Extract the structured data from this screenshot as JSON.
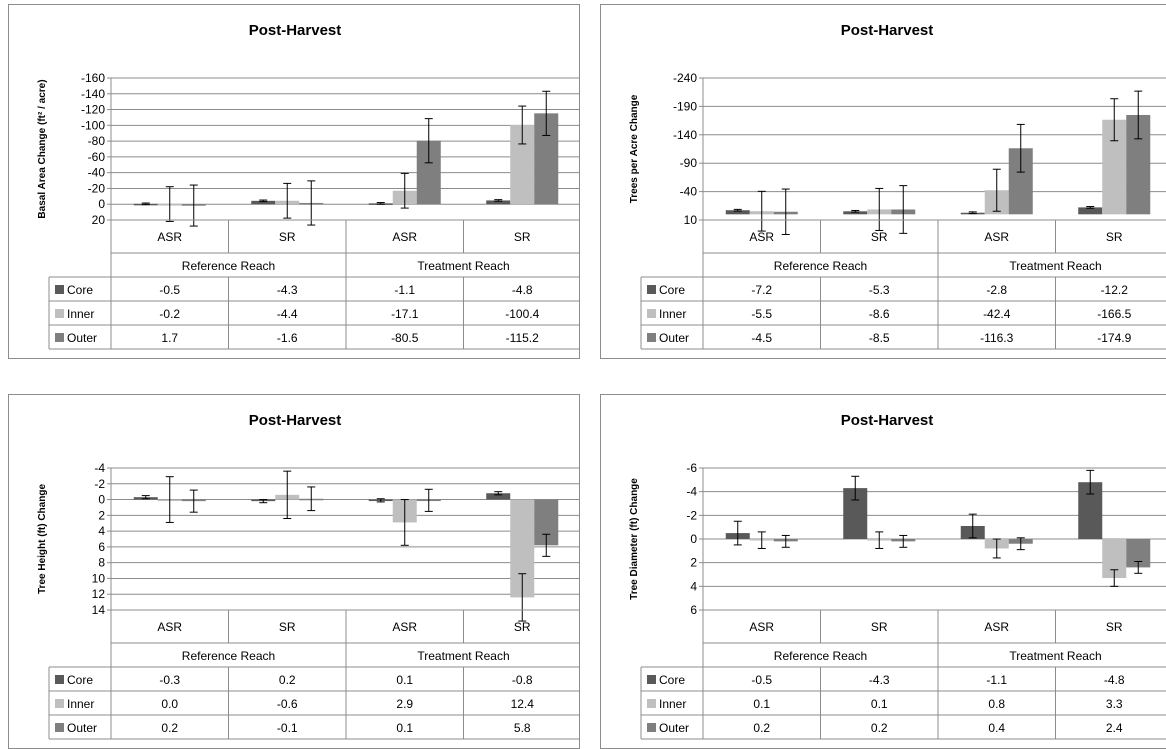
{
  "chart_data": [
    {
      "type": "bar",
      "title": "Post-Harvest",
      "ylabel": "Basal Area Change (ft² / acre)",
      "y_reversed": true,
      "ylim": [
        -160,
        20
      ],
      "ytick_values": [
        -160,
        -140,
        -120,
        -100,
        -80,
        -60,
        -40,
        -20,
        0,
        20
      ],
      "ytick_labels": [
        "-160",
        "-140",
        "-120",
        "-100",
        "-80",
        "-60",
        "-40",
        "-20",
        "0",
        "20"
      ],
      "categories": [
        "ASR",
        "SR",
        "ASR",
        "SR"
      ],
      "groups": [
        "Reference Reach",
        "Treatment Reach"
      ],
      "series": [
        {
          "name": "Core",
          "color": "#595959",
          "values": [
            -0.5,
            -4.3,
            -1.1,
            -4.8
          ],
          "labels": [
            "-0.5",
            "-4.3",
            "-1.1",
            "-4.8"
          ],
          "err": [
            1,
            1,
            1,
            1
          ]
        },
        {
          "name": "Inner",
          "color": "#bfbfbf",
          "values": [
            -0.2,
            -4.4,
            -17.1,
            -100.4
          ],
          "labels": [
            "-0.2",
            "-4.4",
            "-17.1",
            "-100.4"
          ],
          "err": [
            22,
            22,
            22,
            24
          ]
        },
        {
          "name": "Outer",
          "color": "#7f7f7f",
          "values": [
            1.7,
            -1.6,
            -80.5,
            -115.2
          ],
          "labels": [
            "1.7",
            "-1.6",
            "-80.5",
            "-115.2"
          ],
          "err": [
            26,
            28,
            28,
            28
          ]
        }
      ]
    },
    {
      "type": "bar",
      "title": "Post-Harvest",
      "ylabel": "Trees per Acre Change",
      "y_reversed": true,
      "ylim": [
        -240,
        10
      ],
      "ytick_values": [
        -240,
        -190,
        -140,
        -90,
        -40,
        10
      ],
      "ytick_labels": [
        "-240",
        "-190",
        "-140",
        "-90",
        "-40",
        "10"
      ],
      "categories": [
        "ASR",
        "SR",
        "ASR",
        "SR"
      ],
      "groups": [
        "Reference Reach",
        "Treatment Reach"
      ],
      "series": [
        {
          "name": "Core",
          "color": "#595959",
          "values": [
            -7.2,
            -5.3,
            -2.8,
            -12.2
          ],
          "labels": [
            "-7.2",
            "-5.3",
            "-2.8",
            "-12.2"
          ],
          "err": [
            1.5,
            1.5,
            1.5,
            1.5
          ]
        },
        {
          "name": "Inner",
          "color": "#bfbfbf",
          "values": [
            -5.5,
            -8.6,
            -42.4,
            -166.5
          ],
          "labels": [
            "-5.5",
            "-8.6",
            "-42.4",
            "-166.5"
          ],
          "err": [
            35,
            37,
            37,
            37
          ]
        },
        {
          "name": "Outer",
          "color": "#7f7f7f",
          "values": [
            -4.5,
            -8.5,
            -116.3,
            -174.9
          ],
          "labels": [
            "-4.5",
            "-8.5",
            "-116.3",
            "-174.9"
          ],
          "err": [
            40,
            42,
            42,
            42
          ]
        }
      ]
    },
    {
      "type": "bar",
      "title": "Post-Harvest",
      "ylabel": "Tree Height (ft) Change",
      "y_reversed": true,
      "ylim": [
        -4,
        14
      ],
      "ytick_values": [
        -4,
        -2,
        0,
        2,
        4,
        6,
        8,
        10,
        12,
        14
      ],
      "ytick_labels": [
        "-4",
        "-2",
        "0",
        "2",
        "4",
        "6",
        "8",
        "10",
        "12",
        "14"
      ],
      "categories": [
        "ASR",
        "SR",
        "ASR",
        "SR"
      ],
      "groups": [
        "Reference Reach",
        "Treatment Reach"
      ],
      "series": [
        {
          "name": "Core",
          "color": "#595959",
          "values": [
            -0.3,
            0.2,
            0.1,
            -0.8
          ],
          "labels": [
            "-0.3",
            "0.2",
            "0.1",
            "-0.8"
          ],
          "err": [
            0.2,
            0.2,
            0.2,
            0.2
          ]
        },
        {
          "name": "Inner",
          "color": "#bfbfbf",
          "values": [
            0.0,
            -0.6,
            2.9,
            12.4
          ],
          "labels": [
            "0.0",
            "-0.6",
            "2.9",
            "12.4"
          ],
          "err": [
            2.9,
            3.0,
            2.9,
            3.0
          ]
        },
        {
          "name": "Outer",
          "color": "#7f7f7f",
          "values": [
            0.2,
            -0.1,
            0.1,
            5.8
          ],
          "labels": [
            "0.2",
            "-0.1",
            "0.1",
            "5.8"
          ],
          "err": [
            1.4,
            1.5,
            1.4,
            1.4
          ]
        }
      ]
    },
    {
      "type": "bar",
      "title": "Post-Harvest",
      "ylabel": "Tree Diameter (ft) Change",
      "y_reversed": true,
      "ylim": [
        -6,
        6
      ],
      "ytick_values": [
        -6,
        -4,
        -2,
        0,
        2,
        4,
        6
      ],
      "ytick_labels": [
        "-6",
        "-4",
        "-2",
        "0",
        "2",
        "4",
        "6"
      ],
      "categories": [
        "ASR",
        "SR",
        "ASR",
        "SR"
      ],
      "groups": [
        "Reference Reach",
        "Treatment Reach"
      ],
      "series": [
        {
          "name": "Core",
          "color": "#595959",
          "values": [
            -0.5,
            -4.3,
            -1.1,
            -4.8
          ],
          "labels": [
            "-0.5",
            "-4.3",
            "-1.1",
            "-4.8"
          ],
          "err": [
            1.0,
            1.0,
            1.0,
            1.0
          ]
        },
        {
          "name": "Inner",
          "color": "#bfbfbf",
          "values": [
            0.1,
            0.1,
            0.8,
            3.3
          ],
          "labels": [
            "0.1",
            "0.1",
            "0.8",
            "3.3"
          ],
          "err": [
            0.7,
            0.7,
            0.8,
            0.7
          ]
        },
        {
          "name": "Outer",
          "color": "#7f7f7f",
          "values": [
            0.2,
            0.2,
            0.4,
            2.4
          ],
          "labels": [
            "0.2",
            "0.2",
            "0.4",
            "2.4"
          ],
          "err": [
            0.5,
            0.5,
            0.5,
            0.5
          ]
        }
      ]
    }
  ]
}
